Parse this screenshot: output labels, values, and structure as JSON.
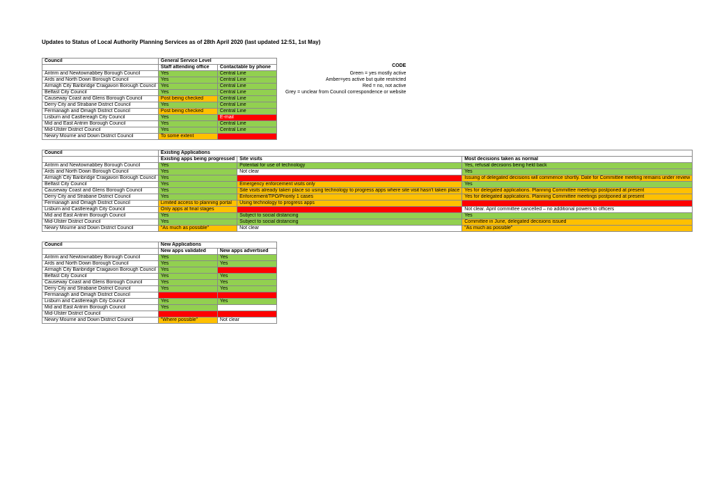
{
  "title": "Updates to Status of Local Authority Planning Services as of 28th April 2020 (last updated 12:51, 1st May)",
  "colors": {
    "green": "#92d050",
    "amber": "#ffc000",
    "red": "#ff0000",
    "white": "#ffffff"
  },
  "legend": {
    "code": "CODE",
    "green": "Green = yes mostly active",
    "amber": "Amber=yes active but quite restricted",
    "red": "Red = no, not active",
    "grey": "Grey = unclear from Council correspondence or website"
  },
  "table1": {
    "header": "General Service Level",
    "sub": [
      "Staff attending office",
      "Contactable by phone"
    ],
    "rows": [
      {
        "council": "Antrim and Newtownabbey Borough Council",
        "a": {
          "t": "Yes",
          "c": "green"
        },
        "b": {
          "t": "Central Line",
          "c": "green"
        }
      },
      {
        "council": "Ards and North Down Borough Council",
        "a": {
          "t": "Yes",
          "c": "green"
        },
        "b": {
          "t": "Central Line",
          "c": "green"
        }
      },
      {
        "council": "Armagh City Banbridge Craigavon Borough Council",
        "a": {
          "t": "Yes",
          "c": "green"
        },
        "b": {
          "t": "Central Line",
          "c": "green"
        }
      },
      {
        "council": "Belfast City Council",
        "a": {
          "t": "Yes",
          "c": "green"
        },
        "b": {
          "t": "Central Line",
          "c": "green"
        }
      },
      {
        "council": "Causeway Coast and Glens Borough Council",
        "a": {
          "t": "Post being checked",
          "c": "amber"
        },
        "b": {
          "t": "Central Line",
          "c": "green"
        }
      },
      {
        "council": "Derry City and Strabane District Council",
        "a": {
          "t": "Yes",
          "c": "green"
        },
        "b": {
          "t": "Central Line",
          "c": "green"
        }
      },
      {
        "council": "Fermanagh and Omagh District Council",
        "a": {
          "t": "Post being checked",
          "c": "amber"
        },
        "b": {
          "t": "Central Line",
          "c": "green"
        }
      },
      {
        "council": "Lisburn and Castlereagh City Council",
        "a": {
          "t": "Yes",
          "c": "green"
        },
        "b": {
          "t": "E-mail",
          "c": "red"
        }
      },
      {
        "council": "Mid and East Antrim Borough Council",
        "a": {
          "t": "Yes",
          "c": "green"
        },
        "b": {
          "t": "Central Line",
          "c": "green"
        }
      },
      {
        "council": "Mid-Ulster District Council",
        "a": {
          "t": "Yes",
          "c": "green"
        },
        "b": {
          "t": "Central Line",
          "c": "green"
        }
      },
      {
        "council": "Newry Mourne and Down District Council",
        "a": {
          "t": "To some extent",
          "c": "amber"
        },
        "b": {
          "t": "",
          "c": "red"
        }
      }
    ]
  },
  "table2": {
    "header": "Existing Applications",
    "sub": [
      "Existing apps being progressed",
      "Site visits",
      "Most decisions taken as normal"
    ],
    "rows": [
      {
        "council": "Antrim and Newtownabbey Borough Council",
        "a": {
          "t": "Yes",
          "c": "green"
        },
        "b": {
          "t": "Potential for use of technology",
          "c": "green"
        },
        "c": {
          "t": "Yes, refusal decisions being held back",
          "c": "green"
        }
      },
      {
        "council": "Ards and North Down Borough Council",
        "a": {
          "t": "Yes",
          "c": "green"
        },
        "b": {
          "t": "Not clear",
          "c": "white"
        },
        "c": {
          "t": "Yes",
          "c": "green"
        }
      },
      {
        "council": "Armagh City Banbridge Craigavon Borough Council",
        "a": {
          "t": "Yes",
          "c": "green"
        },
        "b": {
          "t": "",
          "c": "red"
        },
        "c": {
          "t": "Issuing of delegated decisions will commence shortly. Date for Committee meeting remains under review",
          "c": "amber"
        }
      },
      {
        "council": "Belfast City Council",
        "a": {
          "t": "Yes",
          "c": "green"
        },
        "b": {
          "t": "Emergency enforcement visits only",
          "c": "amber"
        },
        "c": {
          "t": "Yes",
          "c": "green"
        }
      },
      {
        "council": "Causeway Coast and Glens Borough Council",
        "a": {
          "t": "Yes",
          "c": "green"
        },
        "b": {
          "t": "Site visits already taken place so using technology to progress apps where site visit hasn't taken place",
          "c": "amber"
        },
        "c": {
          "t": "Yes for delegated applications. Planning Committee meetings postponed at present",
          "c": "amber"
        }
      },
      {
        "council": "Derry City and Strabane District Council",
        "a": {
          "t": "Yes",
          "c": "green"
        },
        "b": {
          "t": "Enforcement/TPO/Priority 1 cases",
          "c": "amber"
        },
        "c": {
          "t": "Yes for delegated applications. Planning Committee meetings postponed at present",
          "c": "amber"
        }
      },
      {
        "council": "Fermanagh and Omagh District Council",
        "a": {
          "t": "Limited access to planning portal",
          "c": "amber"
        },
        "b": {
          "t": "Using technology to progress apps",
          "c": "amber"
        },
        "c": {
          "t": "",
          "c": "red"
        }
      },
      {
        "council": "Lisburn and Castlereagh City Council",
        "a": {
          "t": "Only apps at final stages",
          "c": "amber"
        },
        "b": {
          "t": "",
          "c": "red"
        },
        "c": {
          "t": "Not clear. April committee cancelled – no additional powers to officers",
          "c": "white"
        }
      },
      {
        "council": "Mid and East Antrim Borough Council",
        "a": {
          "t": "Yes",
          "c": "green"
        },
        "b": {
          "t": "Subject to social distancing",
          "c": "green"
        },
        "c": {
          "t": "Yes",
          "c": "green"
        }
      },
      {
        "council": "Mid-Ulster District Council",
        "a": {
          "t": "Yes",
          "c": "green"
        },
        "b": {
          "t": "Subject to social distancing",
          "c": "green"
        },
        "c": {
          "t": "Committee in June, delegated decisions issued",
          "c": "amber"
        }
      },
      {
        "council": "Newry Mourne and Down District Council",
        "a": {
          "t": "\"As much as possible\"",
          "c": "amber"
        },
        "b": {
          "t": "Not clear",
          "c": "white"
        },
        "c": {
          "t": "\"As much as possible\"",
          "c": "amber"
        }
      }
    ]
  },
  "table3": {
    "header": "New Applications",
    "sub": [
      "New apps validated",
      "New apps advertised"
    ],
    "rows": [
      {
        "council": "Antrim and Newtownabbey Borough Council",
        "a": {
          "t": "Yes",
          "c": "green"
        },
        "b": {
          "t": "Yes",
          "c": "green"
        }
      },
      {
        "council": "Ards and North Down Borough Council",
        "a": {
          "t": "Yes",
          "c": "green"
        },
        "b": {
          "t": "Yes",
          "c": "green"
        }
      },
      {
        "council": "Armagh City Banbridge Craigavon Borough Council",
        "a": {
          "t": "Yes",
          "c": "green"
        },
        "b": {
          "t": "",
          "c": "red"
        }
      },
      {
        "council": "Belfast City Council",
        "a": {
          "t": "Yes",
          "c": "green"
        },
        "b": {
          "t": "Yes",
          "c": "green"
        }
      },
      {
        "council": "Causeway Coast and Glens Borough Council",
        "a": {
          "t": "Yes",
          "c": "green"
        },
        "b": {
          "t": "Yes",
          "c": "green"
        }
      },
      {
        "council": "Derry City and Strabane District Council",
        "a": {
          "t": "Yes",
          "c": "green"
        },
        "b": {
          "t": "Yes",
          "c": "green"
        }
      },
      {
        "council": "Fermanagh and Omagh District Council",
        "a": {
          "t": "",
          "c": "red"
        },
        "b": {
          "t": "",
          "c": "red"
        }
      },
      {
        "council": "Lisburn and Castlereagh City Council",
        "a": {
          "t": "Yes",
          "c": "green"
        },
        "b": {
          "t": "Yes",
          "c": "green"
        }
      },
      {
        "council": "Mid and East Antrim Borough Council",
        "a": {
          "t": "Yes",
          "c": "green"
        },
        "b": {
          "t": "",
          "c": "white"
        }
      },
      {
        "council": "Mid-Ulster District Council",
        "a": {
          "t": "",
          "c": "red"
        },
        "b": {
          "t": "",
          "c": "red"
        }
      },
      {
        "council": "Newry Mourne and Down District Council",
        "a": {
          "t": "\"Where possible\"",
          "c": "amber"
        },
        "b": {
          "t": "Not clear",
          "c": "white"
        }
      }
    ]
  }
}
